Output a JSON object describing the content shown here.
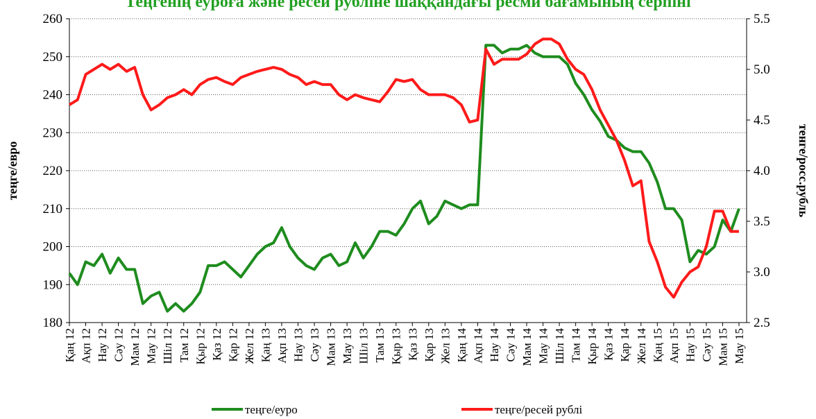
{
  "chart_data": {
    "type": "line",
    "title": "Теңгенің еуроға және ресей рубліне шаққандағы ресми бағамының серпіні",
    "y_label": "теңге/евро",
    "y2_label": "тенге/росс.рубль",
    "categories": [
      "Қаң 12",
      null,
      "Ақп 12",
      null,
      "Нау 12",
      null,
      "Сәу 12",
      null,
      "Мам 12",
      null,
      "Мау 12",
      null,
      "Шіл 12",
      null,
      "Там 12",
      null,
      "Қыр 12",
      null,
      "Қаз 12",
      null,
      "Қар 12",
      null,
      "Жел 12",
      null,
      "Қаң 13",
      null,
      "Ақп 13",
      null,
      "Нау 13",
      null,
      "Сәу 13",
      null,
      "Мам 13",
      null,
      "Мау 13",
      null,
      "Шіл 13",
      null,
      "Там 13",
      null,
      "Қыр 13",
      null,
      "Қаз 13",
      null,
      "Қар 13",
      null,
      "Жел 13",
      null,
      "Қаң 14",
      null,
      "Ақп 14",
      null,
      "Нау 14",
      null,
      "Сәу 14",
      null,
      "Мам 14",
      null,
      "Мау 14",
      null,
      "Шіл 14",
      null,
      "Там 14",
      null,
      "Қыр 14",
      null,
      "Қаз 14",
      null,
      "Қар 14",
      null,
      "Жел 14",
      null,
      "Қаң 15",
      null,
      "Ақп 15",
      null,
      "Нау 15",
      null,
      "Сәу 15",
      null,
      "Мам 15",
      null,
      "Мау 15"
    ],
    "series": [
      {
        "name": "теңге/еуро",
        "color": "#1e8c1e",
        "axis": "y",
        "values": [
          193,
          190,
          196,
          195,
          198,
          193,
          197,
          194,
          194,
          185,
          187,
          188,
          183,
          185,
          183,
          185,
          188,
          195,
          195,
          196,
          194,
          192,
          195,
          198,
          200,
          201,
          205,
          200,
          197,
          195,
          194,
          197,
          198,
          195,
          196,
          201,
          197,
          200,
          204,
          204,
          203,
          206,
          210,
          212,
          206,
          208,
          212,
          211,
          210,
          211,
          211,
          253,
          253,
          251,
          252,
          252,
          253,
          251,
          250,
          250,
          250,
          248,
          243,
          240,
          236,
          233,
          229,
          228,
          226,
          225,
          225,
          222,
          217,
          210,
          210,
          207,
          196,
          199,
          198,
          200,
          207,
          204,
          210
        ]
      },
      {
        "name": "теңге/ресей рублі",
        "color": "#ff1a1a",
        "axis": "y2",
        "values": [
          4.65,
          4.7,
          4.95,
          5.0,
          5.05,
          5.0,
          5.05,
          4.98,
          5.02,
          4.75,
          4.6,
          4.65,
          4.72,
          4.75,
          4.8,
          4.75,
          4.85,
          4.9,
          4.92,
          4.88,
          4.85,
          4.92,
          4.95,
          4.98,
          5.0,
          5.02,
          5.0,
          4.95,
          4.92,
          4.85,
          4.88,
          4.85,
          4.85,
          4.75,
          4.7,
          4.75,
          4.72,
          4.7,
          4.68,
          4.78,
          4.9,
          4.88,
          4.9,
          4.8,
          4.75,
          4.75,
          4.75,
          4.72,
          4.65,
          4.48,
          4.5,
          5.2,
          5.05,
          5.1,
          5.1,
          5.1,
          5.15,
          5.25,
          5.3,
          5.3,
          5.25,
          5.1,
          5.0,
          4.95,
          4.8,
          4.6,
          4.45,
          4.3,
          4.1,
          3.85,
          3.9,
          3.3,
          3.1,
          2.85,
          2.75,
          2.9,
          3.0,
          3.05,
          3.25,
          3.6,
          3.6,
          3.4,
          3.4
        ]
      }
    ],
    "ylim": [
      180,
      260
    ],
    "yticks": [
      180,
      190,
      200,
      210,
      220,
      230,
      240,
      250,
      260
    ],
    "y2lim": [
      2.5,
      5.5
    ],
    "y2ticks": [
      2.5,
      {
        "value": 3,
        "label": "3.0"
      },
      3.5,
      {
        "value": 4,
        "label": "4.0"
      },
      4.5,
      {
        "value": 5,
        "label": "5.0"
      },
      5.5
    ],
    "grid": true,
    "legend": "bottom"
  }
}
